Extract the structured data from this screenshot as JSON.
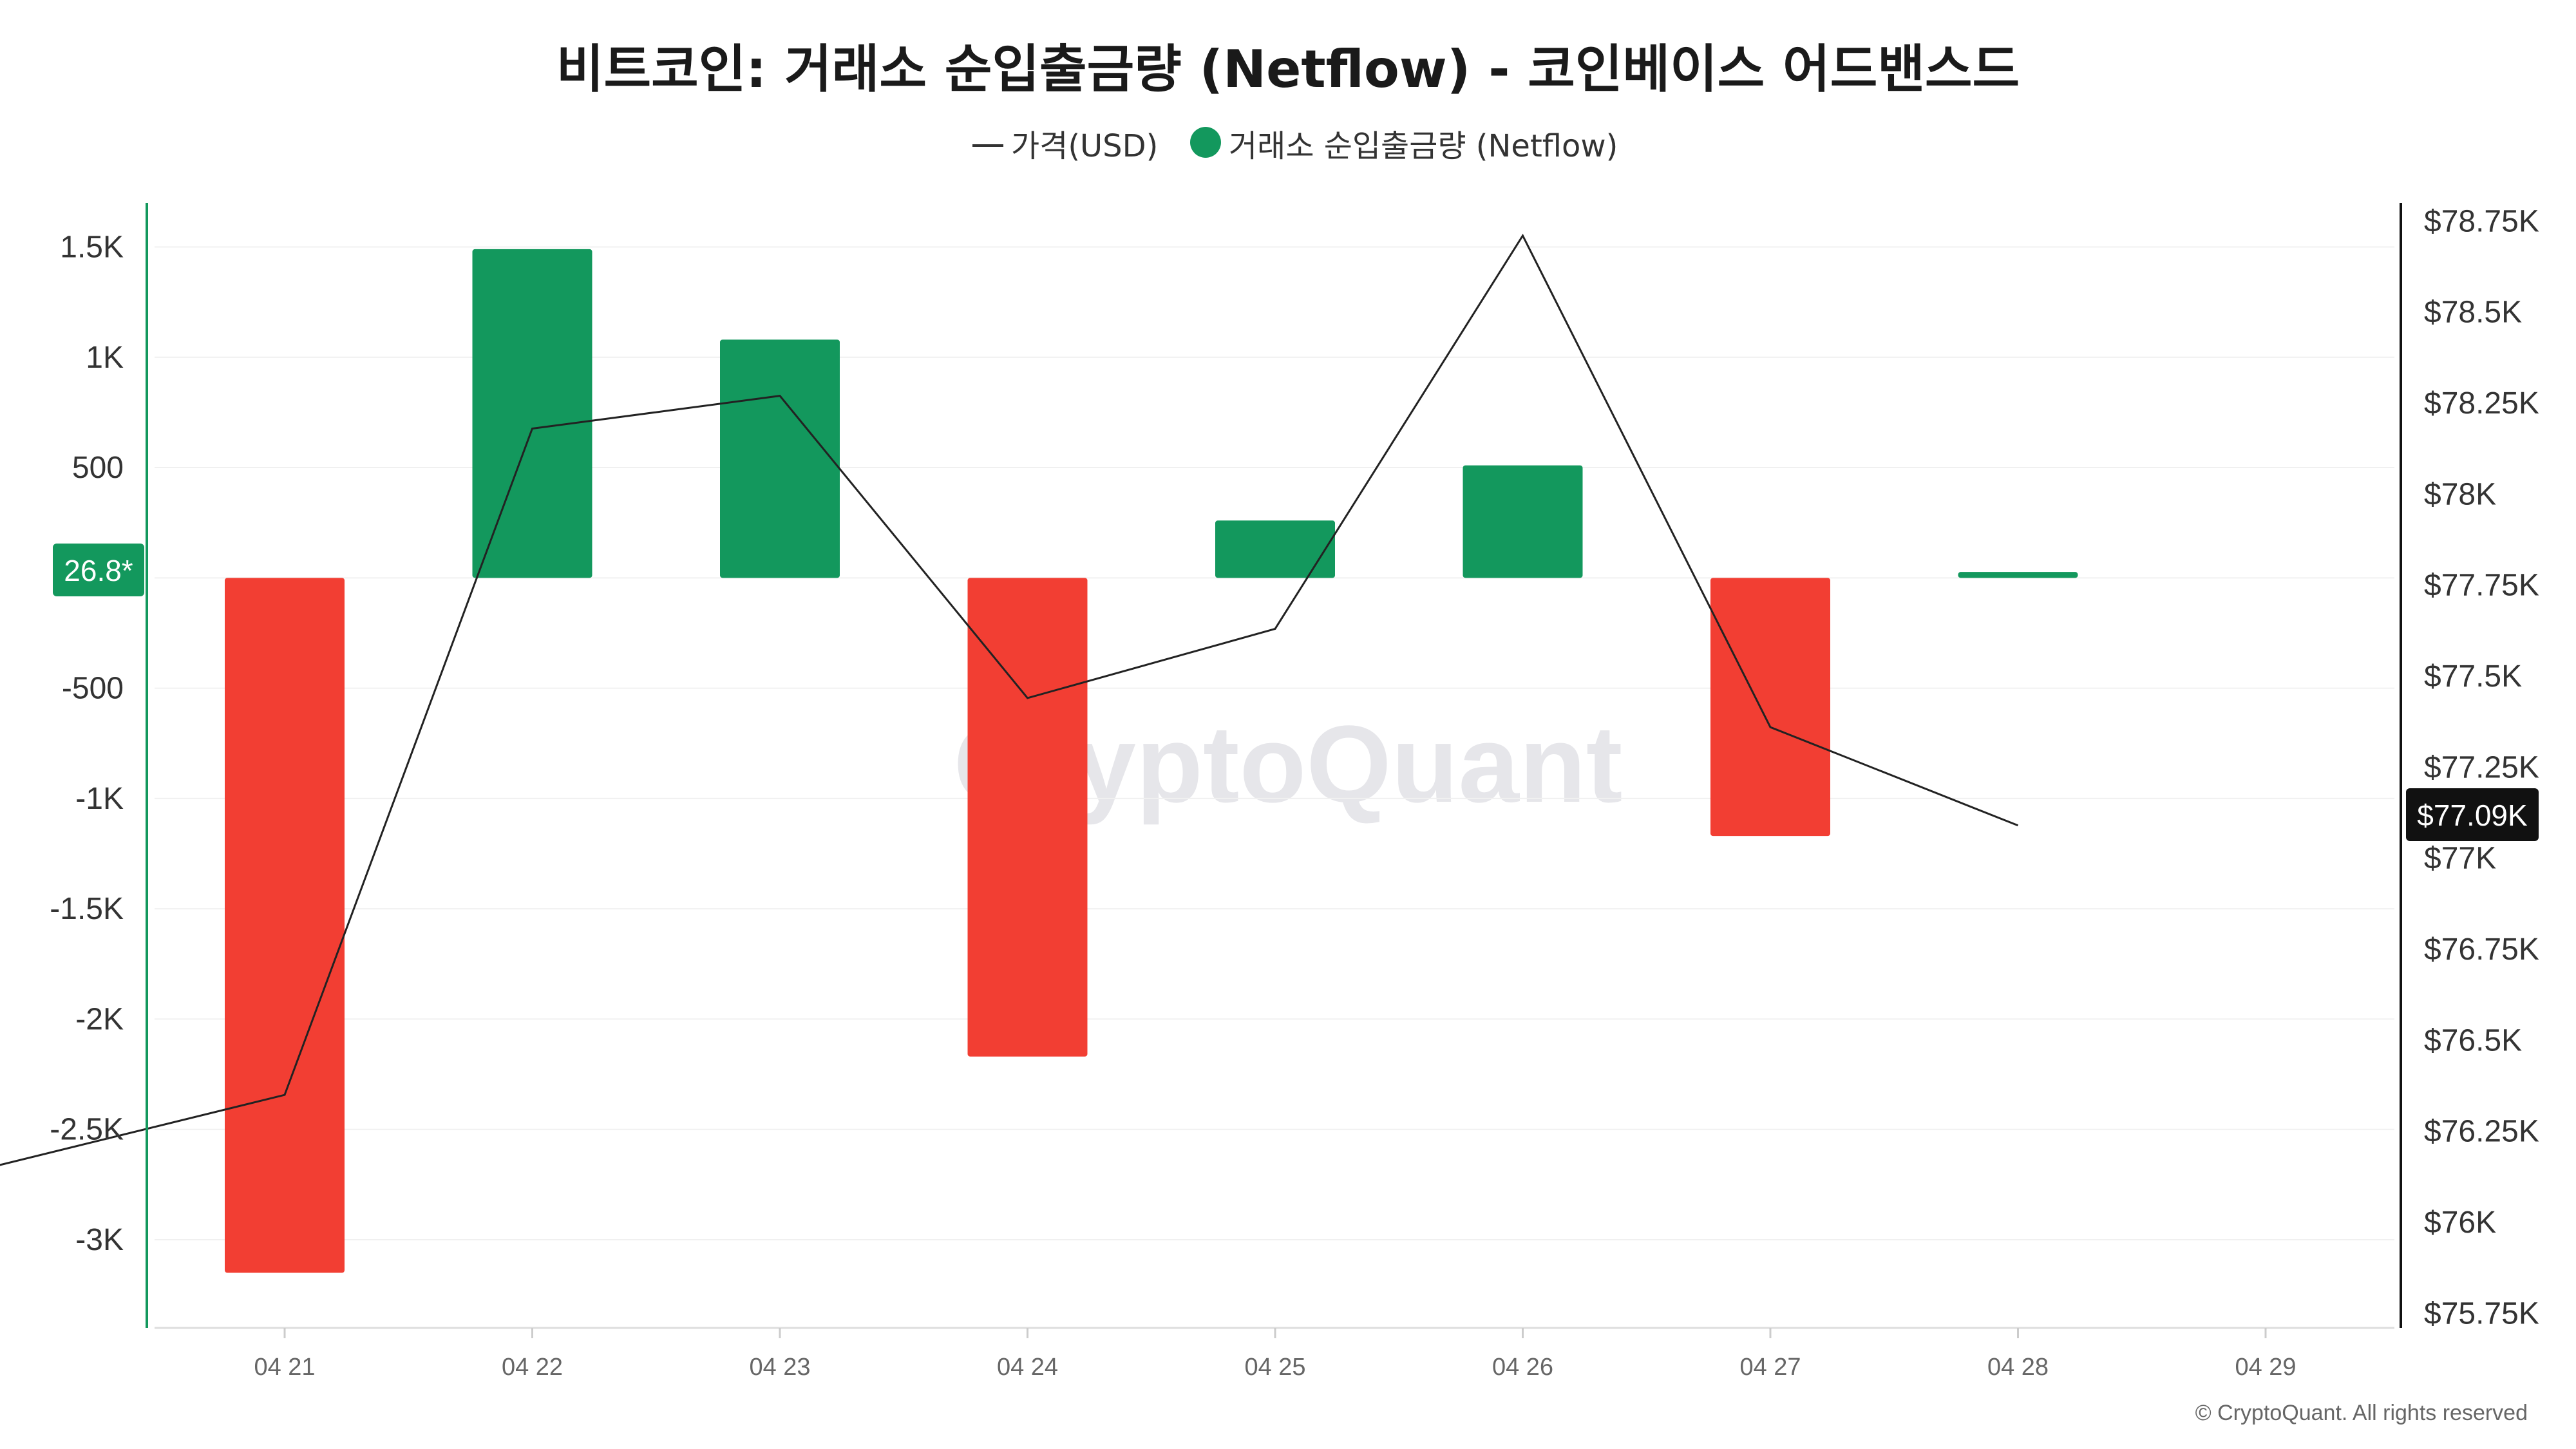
{
  "chart_data": {
    "type": "bar",
    "title": "비트코인: 거래소 순입출금량 (Netflow) - 코인베이스 어드밴스드",
    "categories": [
      "04 21",
      "04 22",
      "04 23",
      "04 24",
      "04 25",
      "04 26",
      "04 27",
      "04 28",
      "04 29"
    ],
    "series": [
      {
        "name": "거래소 순입출금량 (Netflow)",
        "type": "bar",
        "axis": "left",
        "values": [
          -3150,
          1490,
          1080,
          -2170,
          260,
          510,
          -1170,
          26.8,
          null
        ],
        "positive_color": "#13985d",
        "negative_color": "#f23e33"
      },
      {
        "name": "가격(USD)",
        "type": "line",
        "axis": "right",
        "values": [
          76100,
          76350,
          78180,
          78270,
          77440,
          77630,
          78710,
          77360,
          77090
        ],
        "x_offsets": [
          -1,
          0,
          1,
          2,
          3,
          4,
          5,
          6,
          7
        ],
        "color": "#222222"
      }
    ],
    "left_axis": {
      "ylim": [
        -3400,
        1700
      ],
      "ticks": [
        1500,
        1000,
        500,
        -500,
        -1000,
        -1500,
        -2000,
        -2500,
        -3000
      ],
      "tick_labels": [
        "1.5K",
        "1K",
        "500",
        "-500",
        "-1K",
        "-1.5K",
        "-2K",
        "-2.5K",
        "-3K"
      ],
      "color": "#13985d"
    },
    "right_axis": {
      "ylim": [
        75710,
        78800
      ],
      "ticks": [
        78750,
        78500,
        78250,
        78000,
        77750,
        77500,
        77250,
        77000,
        76750,
        76500,
        76250,
        76000,
        75750
      ],
      "tick_labels": [
        "$78.75K",
        "$78.5K",
        "$78.25K",
        "$78K",
        "$77.75K",
        "$77.5K",
        "$77.25K",
        "$77K",
        "$76.75K",
        "$76.5K",
        "$76.25K",
        "$76K",
        "$75.75K"
      ]
    },
    "legend": {
      "placement": "top-center",
      "items": [
        {
          "label": "가격(USD)",
          "marker": "line"
        },
        {
          "label": "거래소 순입출금량 (Netflow)",
          "marker": "dot",
          "color": "#13985d"
        }
      ]
    },
    "current_value_badges": {
      "left": "26.8*",
      "right": "$77.09K"
    },
    "grid": true,
    "watermark": "CryptoQuant",
    "copyright": "© CryptoQuant. All rights reserved"
  }
}
